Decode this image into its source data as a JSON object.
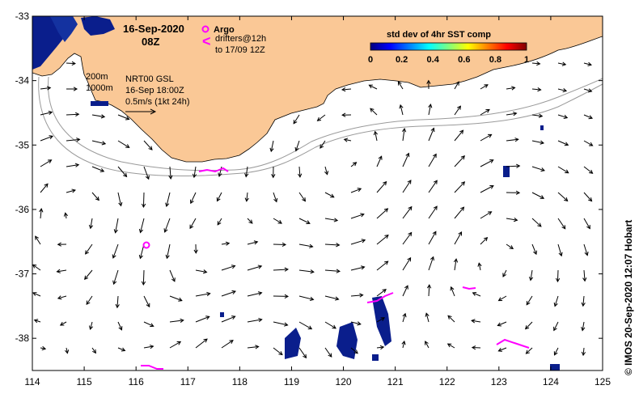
{
  "map": {
    "lon_range": [
      114,
      125
    ],
    "lat_range": [
      -38.5,
      -33
    ],
    "lon_ticks": [
      "114",
      "115",
      "116",
      "117",
      "118",
      "119",
      "120",
      "121",
      "122",
      "123",
      "124",
      "125"
    ],
    "lat_ticks": [
      "-33",
      "-34",
      "-35",
      "-36",
      "-37",
      "-38"
    ],
    "land_color": "#fac896",
    "ocean_color": "#ffffff",
    "arrow_color": "#000000",
    "drifter_color": "#ff00ff",
    "sst_patch_color": "#0a1e8c"
  },
  "title": {
    "date": "16-Sep-2020",
    "time": "08Z"
  },
  "legend": {
    "argo_label": "Argo",
    "drifter_label_1": "drifters@12h",
    "drifter_label_2": "to 17/09 12Z",
    "contour_200": "200m",
    "contour_1000": "1000m",
    "product": "NRT00 GSL",
    "valid_time": "16-Sep 18:00Z",
    "scale_label": "0.5m/s (1kt 24h)"
  },
  "colorbar": {
    "title": "std dev of 4hr SST comp",
    "ticks": [
      "0",
      "0.2",
      "0.4",
      "0.6",
      "0.8",
      "1"
    ],
    "colors": [
      "#00007f",
      "#0000ff",
      "#007fff",
      "#00ffff",
      "#7fff7f",
      "#ffff00",
      "#ff7f00",
      "#ff0000",
      "#7f0000"
    ]
  },
  "credit": "© IMOS 20-Sep-2020 12:07 Hobart"
}
